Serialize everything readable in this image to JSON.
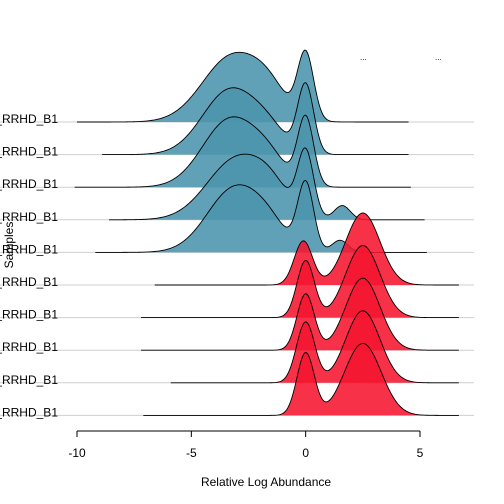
{
  "chart_data": {
    "type": "ridgeline",
    "title": "",
    "xlabel": "Relative Log Abundance",
    "ylabel": "Samples",
    "xlim": [
      -10,
      6.5
    ],
    "x_ticks": [
      -10,
      -5,
      0,
      5
    ],
    "x_tick_labels": [
      "-10",
      "-5",
      "0",
      "5"
    ],
    "legend_fragments": [
      "...",
      "..."
    ],
    "colors": {
      "group_a": "#4b94ad",
      "group_b": "#f5152f",
      "outline": "#000000",
      "baseline": "#cfcfcf"
    },
    "rows": [
      {
        "label": "_RRHD_B1",
        "group": "group_a",
        "x_range": [
          -10.0,
          4.5
        ],
        "height": 1.0,
        "peaks": [
          [
            -3.2,
            1.3,
            0.95
          ],
          [
            -1.6,
            0.8,
            0.3
          ],
          [
            0.0,
            0.35,
            0.95
          ]
        ]
      },
      {
        "label": "_RRHD_B1",
        "group": "group_a",
        "x_range": [
          -8.9,
          4.5
        ],
        "height": 1.0,
        "peaks": [
          [
            -3.3,
            1.2,
            0.95
          ],
          [
            -1.6,
            0.8,
            0.25
          ],
          [
            0.0,
            0.35,
            1.0
          ]
        ]
      },
      {
        "label": "_RRHD_B1",
        "group": "group_a",
        "x_range": [
          -10.1,
          4.6
        ],
        "height": 1.0,
        "peaks": [
          [
            -3.3,
            1.2,
            1.0
          ],
          [
            -1.6,
            0.8,
            0.3
          ],
          [
            0.0,
            0.35,
            1.0
          ]
        ]
      },
      {
        "label": "_RRHD_B1",
        "group": "group_a",
        "x_range": [
          -8.6,
          5.2
        ],
        "height": 1.0,
        "peaks": [
          [
            -3.0,
            1.3,
            0.95
          ],
          [
            -1.5,
            0.8,
            0.3
          ],
          [
            0.0,
            0.35,
            1.0
          ],
          [
            1.6,
            0.35,
            0.22
          ]
        ]
      },
      {
        "label": "_RRHD_B1",
        "group": "group_a",
        "x_range": [
          -9.2,
          5.3
        ],
        "height": 1.0,
        "peaks": [
          [
            -3.1,
            1.2,
            0.95
          ],
          [
            -1.6,
            0.8,
            0.25
          ],
          [
            0.0,
            0.35,
            1.0
          ],
          [
            1.5,
            0.35,
            0.18
          ]
        ]
      },
      {
        "label": "_RRHD_B1",
        "group": "group_b",
        "x_range": [
          -6.6,
          6.7
        ],
        "height": 1.0,
        "peaks": [
          [
            -0.1,
            0.4,
            0.55
          ],
          [
            2.5,
            0.75,
            0.9
          ]
        ]
      },
      {
        "label": "_RRHD_B1",
        "group": "group_b",
        "x_range": [
          -7.2,
          6.7
        ],
        "height": 1.0,
        "peaks": [
          [
            0.0,
            0.38,
            0.75
          ],
          [
            2.5,
            0.75,
            0.95
          ]
        ]
      },
      {
        "label": "_RRHD_B1",
        "group": "group_b",
        "x_range": [
          -7.2,
          6.7
        ],
        "height": 1.0,
        "peaks": [
          [
            0.0,
            0.38,
            0.78
          ],
          [
            2.5,
            0.75,
            1.0
          ]
        ]
      },
      {
        "label": "_RRHD_B1",
        "group": "group_b",
        "x_range": [
          -5.9,
          6.7
        ],
        "height": 1.0,
        "peaks": [
          [
            0.0,
            0.4,
            0.8
          ],
          [
            2.5,
            0.75,
            0.95
          ]
        ]
      },
      {
        "label": "_RRHD_B1",
        "group": "group_b",
        "x_range": [
          -7.1,
          6.7
        ],
        "height": 1.0,
        "peaks": [
          [
            0.0,
            0.38,
            0.78
          ],
          [
            2.5,
            0.8,
            0.9
          ]
        ]
      }
    ]
  }
}
